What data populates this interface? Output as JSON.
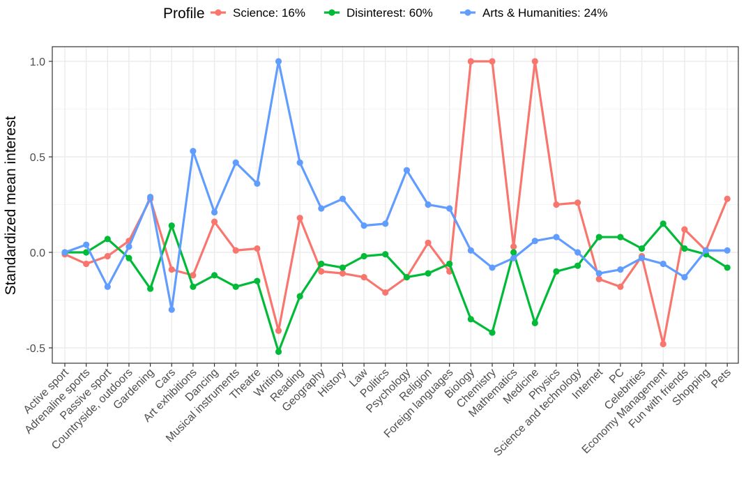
{
  "chart_data": {
    "type": "line",
    "ylabel": "Standardized mean interest",
    "xlabel": "",
    "legend": {
      "title": "Profile",
      "position": "top",
      "entries": [
        "Science: 16%",
        "Disinterest: 60%",
        "Arts & Humanities: 24%"
      ]
    },
    "grid": true,
    "ylim": [
      -0.59,
      1.07
    ],
    "yticks": [
      1.0,
      0.5,
      0.0,
      -0.5
    ],
    "ytick_labels": [
      "1.0",
      "0.5",
      "0.0",
      "-0.5"
    ],
    "categories": [
      "Active sport",
      "Adrenaline sports",
      "Passive sport",
      "Countryside, outdoors",
      "Gardening",
      "Cars",
      "Art exhibitions",
      "Dancing",
      "Musical instruments",
      "Theatre",
      "Writing",
      "Reading",
      "Geography",
      "History",
      "Law",
      "Politics",
      "Psychology",
      "Religion",
      "Foreign languages",
      "Biology",
      "Chemistry",
      "Mathematics",
      "Medicine",
      "Physics",
      "Science and technology",
      "Internet",
      "PC",
      "Celebrities",
      "Economy Management",
      "Fun with friends",
      "Shopping",
      "Pets"
    ],
    "series": [
      {
        "name": "Science: 16%",
        "color": "#F8766D",
        "values": [
          -0.01,
          -0.06,
          -0.02,
          0.06,
          0.28,
          -0.09,
          -0.12,
          0.16,
          0.01,
          0.02,
          -0.41,
          0.18,
          -0.1,
          -0.11,
          -0.13,
          -0.21,
          -0.13,
          0.05,
          -0.1,
          1.0,
          1.0,
          0.03,
          1.0,
          0.25,
          0.26,
          -0.14,
          -0.18,
          -0.02,
          -0.48,
          0.12,
          0.01,
          0.28
        ]
      },
      {
        "name": "Disinterest: 60%",
        "color": "#00BA38",
        "values": [
          0.0,
          0.0,
          0.07,
          -0.03,
          -0.19,
          0.14,
          -0.18,
          -0.12,
          -0.18,
          -0.15,
          -0.52,
          -0.23,
          -0.06,
          -0.08,
          -0.02,
          -0.01,
          -0.13,
          -0.11,
          -0.06,
          -0.35,
          -0.42,
          0.0,
          -0.37,
          -0.1,
          -0.07,
          0.08,
          0.08,
          0.02,
          0.15,
          0.02,
          -0.01,
          -0.08
        ]
      },
      {
        "name": "Arts & Humanities: 24%",
        "color": "#619CFF",
        "values": [
          0.0,
          0.04,
          -0.18,
          0.03,
          0.29,
          -0.3,
          0.53,
          0.21,
          0.47,
          0.36,
          1.0,
          0.47,
          0.23,
          0.28,
          0.14,
          0.15,
          0.43,
          0.25,
          0.23,
          0.01,
          -0.08,
          -0.03,
          0.06,
          0.08,
          0.0,
          -0.11,
          -0.09,
          -0.03,
          -0.06,
          -0.13,
          0.01,
          0.01
        ]
      }
    ]
  }
}
